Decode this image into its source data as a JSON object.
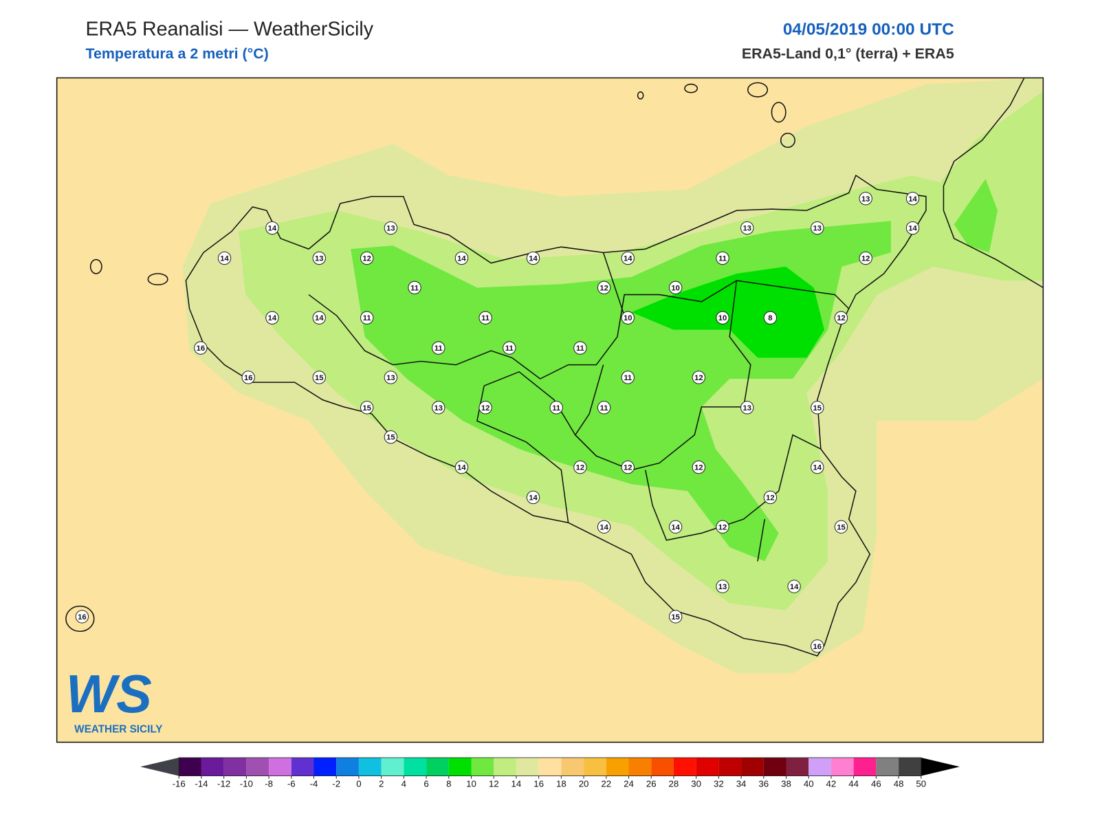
{
  "header": {
    "title": "ERA5 Reanalisi — WeatherSicily",
    "subtitle": "Temperatura a 2 metri (°C)",
    "date": "04/05/2019 00:00 UTC",
    "source": "ERA5-Land 0,1° (terra) + ERA5"
  },
  "logo": {
    "mark": "WS",
    "name": "WEATHER SICILY"
  },
  "stations": [
    14,
    13,
    14,
    13,
    12,
    14,
    14,
    14,
    11,
    13,
    13,
    13,
    14,
    14,
    12,
    11,
    12,
    10,
    14,
    14,
    11,
    11,
    10,
    10,
    8,
    12,
    16,
    11,
    11,
    11,
    16,
    15,
    13,
    11,
    12,
    15,
    13,
    12,
    11,
    11,
    13,
    15,
    15,
    14,
    12,
    12,
    12,
    14,
    14,
    12,
    14,
    14,
    12,
    15,
    13,
    14,
    15,
    16,
    16
  ],
  "colorbar": {
    "ticks": [
      -16,
      -14,
      -12,
      -10,
      -8,
      -6,
      -4,
      -2,
      0,
      2,
      4,
      6,
      8,
      10,
      12,
      14,
      16,
      18,
      20,
      22,
      24,
      26,
      28,
      30,
      32,
      34,
      36,
      38,
      40,
      42,
      44,
      46,
      48,
      50
    ],
    "colors": [
      "#3f0050",
      "#6a1a9a",
      "#8030a0",
      "#a050b0",
      "#d070e0",
      "#6030d0",
      "#0020ff",
      "#1080e0",
      "#10c0e0",
      "#60f0d0",
      "#00e0a0",
      "#00d060",
      "#00e000",
      "#70e840",
      "#c0ec80",
      "#e0e8a0",
      "#ffe0a0",
      "#f8c870",
      "#f8c040",
      "#f8a000",
      "#f88000",
      "#f85000",
      "#ff1000",
      "#e00000",
      "#c00000",
      "#a00000",
      "#700010",
      "#802040",
      "#d0a0f8",
      "#ff80d0",
      "#ff2090",
      "#808080",
      "#404040"
    ],
    "under_color": "#404048",
    "over_color": "#000000"
  }
}
